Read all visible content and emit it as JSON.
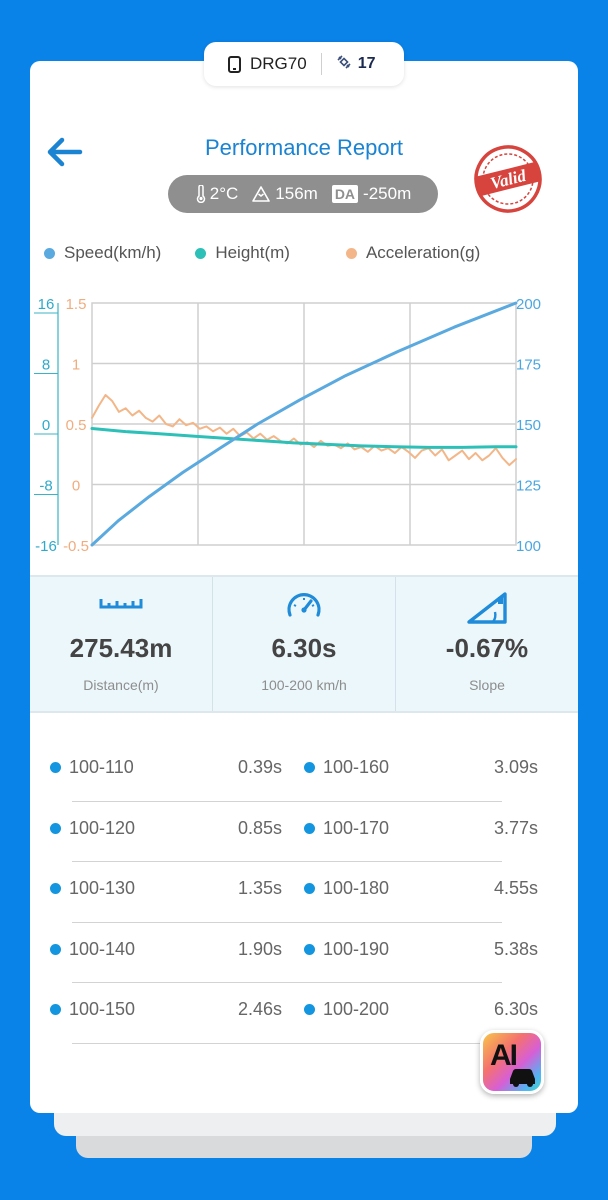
{
  "device": {
    "name": "DRG70",
    "satellites": "17"
  },
  "header": {
    "title": "Performance Report",
    "stamp_text": "Valid"
  },
  "environment": {
    "temperature": "2°C",
    "altitude": "156m",
    "da_label": "DA",
    "density_altitude": "-250m"
  },
  "legend": [
    {
      "label": "Speed(km/h)",
      "color": "#5aa9df"
    },
    {
      "label": "Height(m)",
      "color": "#2cc0b8"
    },
    {
      "label": "Acceleration(g)",
      "color": "#f3b688"
    }
  ],
  "chart_data": {
    "type": "line",
    "x_range": [
      0,
      6.3
    ],
    "axes": {
      "height_ticks": [
        "16",
        "8",
        "0",
        "-8",
        "-16"
      ],
      "acceleration_ticks": [
        "1.5",
        "1",
        "0.5",
        "0",
        "-0.5"
      ],
      "speed_ticks": [
        "200",
        "175",
        "150",
        "125",
        "100"
      ],
      "height_range": [
        -16,
        16
      ],
      "acceleration_range": [
        -0.5,
        1.5
      ],
      "speed_range": [
        100,
        200
      ]
    },
    "grid": true,
    "series": [
      {
        "name": "Speed(km/h)",
        "color": "#5aa9df",
        "x": [
          0,
          0.39,
          0.85,
          1.35,
          1.9,
          2.46,
          3.09,
          3.77,
          4.55,
          5.38,
          6.3
        ],
        "y": [
          100,
          110,
          120,
          130,
          140,
          150,
          160,
          170,
          180,
          190,
          200
        ]
      },
      {
        "name": "Height(m)",
        "color": "#2cc0b8",
        "x": [
          0,
          0.5,
          1,
          1.5,
          2,
          2.5,
          3,
          3.5,
          4,
          4.5,
          5,
          5.5,
          6,
          6.3
        ],
        "y": [
          -0.6,
          -1.0,
          -1.3,
          -1.6,
          -1.9,
          -2.2,
          -2.5,
          -2.7,
          -2.9,
          -3.0,
          -3.1,
          -3.1,
          -3.0,
          -3.0
        ]
      },
      {
        "name": "Acceleration(g)",
        "color": "#f3b688",
        "x": [
          0,
          0.1,
          0.2,
          0.3,
          0.4,
          0.5,
          0.6,
          0.7,
          0.8,
          0.9,
          1.0,
          1.1,
          1.2,
          1.3,
          1.4,
          1.5,
          1.6,
          1.7,
          1.8,
          1.9,
          2.0,
          2.1,
          2.2,
          2.3,
          2.4,
          2.5,
          2.6,
          2.7,
          2.8,
          2.9,
          3.0,
          3.1,
          3.2,
          3.3,
          3.4,
          3.5,
          3.6,
          3.7,
          3.8,
          3.9,
          4.0,
          4.1,
          4.2,
          4.3,
          4.4,
          4.5,
          4.6,
          4.7,
          4.8,
          4.9,
          5.0,
          5.1,
          5.2,
          5.3,
          5.4,
          5.5,
          5.6,
          5.7,
          5.8,
          5.9,
          6.0,
          6.1,
          6.2,
          6.3
        ],
        "y": [
          0.55,
          0.65,
          0.74,
          0.69,
          0.6,
          0.63,
          0.57,
          0.61,
          0.55,
          0.52,
          0.57,
          0.5,
          0.48,
          0.54,
          0.49,
          0.51,
          0.46,
          0.48,
          0.44,
          0.47,
          0.42,
          0.46,
          0.4,
          0.43,
          0.38,
          0.42,
          0.37,
          0.4,
          0.36,
          0.34,
          0.38,
          0.33,
          0.35,
          0.31,
          0.36,
          0.32,
          0.33,
          0.3,
          0.34,
          0.29,
          0.31,
          0.27,
          0.32,
          0.28,
          0.3,
          0.26,
          0.31,
          0.27,
          0.22,
          0.28,
          0.3,
          0.24,
          0.29,
          0.2,
          0.24,
          0.28,
          0.21,
          0.26,
          0.2,
          0.24,
          0.3,
          0.22,
          0.16,
          0.21
        ]
      }
    ]
  },
  "stats": [
    {
      "icon": "ruler-icon",
      "value": "275.43m",
      "label": "Distance(m)"
    },
    {
      "icon": "speedometer-icon",
      "value": "6.30s",
      "label": "100-200 km/h"
    },
    {
      "icon": "slope-icon",
      "value": "-0.67%",
      "label": "Slope"
    }
  ],
  "splits": [
    {
      "left_range": "100-110",
      "left_time": "0.39s",
      "right_range": "100-160",
      "right_time": "3.09s"
    },
    {
      "left_range": "100-120",
      "left_time": "0.85s",
      "right_range": "100-170",
      "right_time": "3.77s"
    },
    {
      "left_range": "100-130",
      "left_time": "1.35s",
      "right_range": "100-180",
      "right_time": "4.55s"
    },
    {
      "left_range": "100-140",
      "left_time": "1.90s",
      "right_range": "100-190",
      "right_time": "5.38s"
    },
    {
      "left_range": "100-150",
      "left_time": "2.46s",
      "right_range": "100-200",
      "right_time": "6.30s"
    }
  ],
  "ai_button": {
    "label": "AI"
  }
}
